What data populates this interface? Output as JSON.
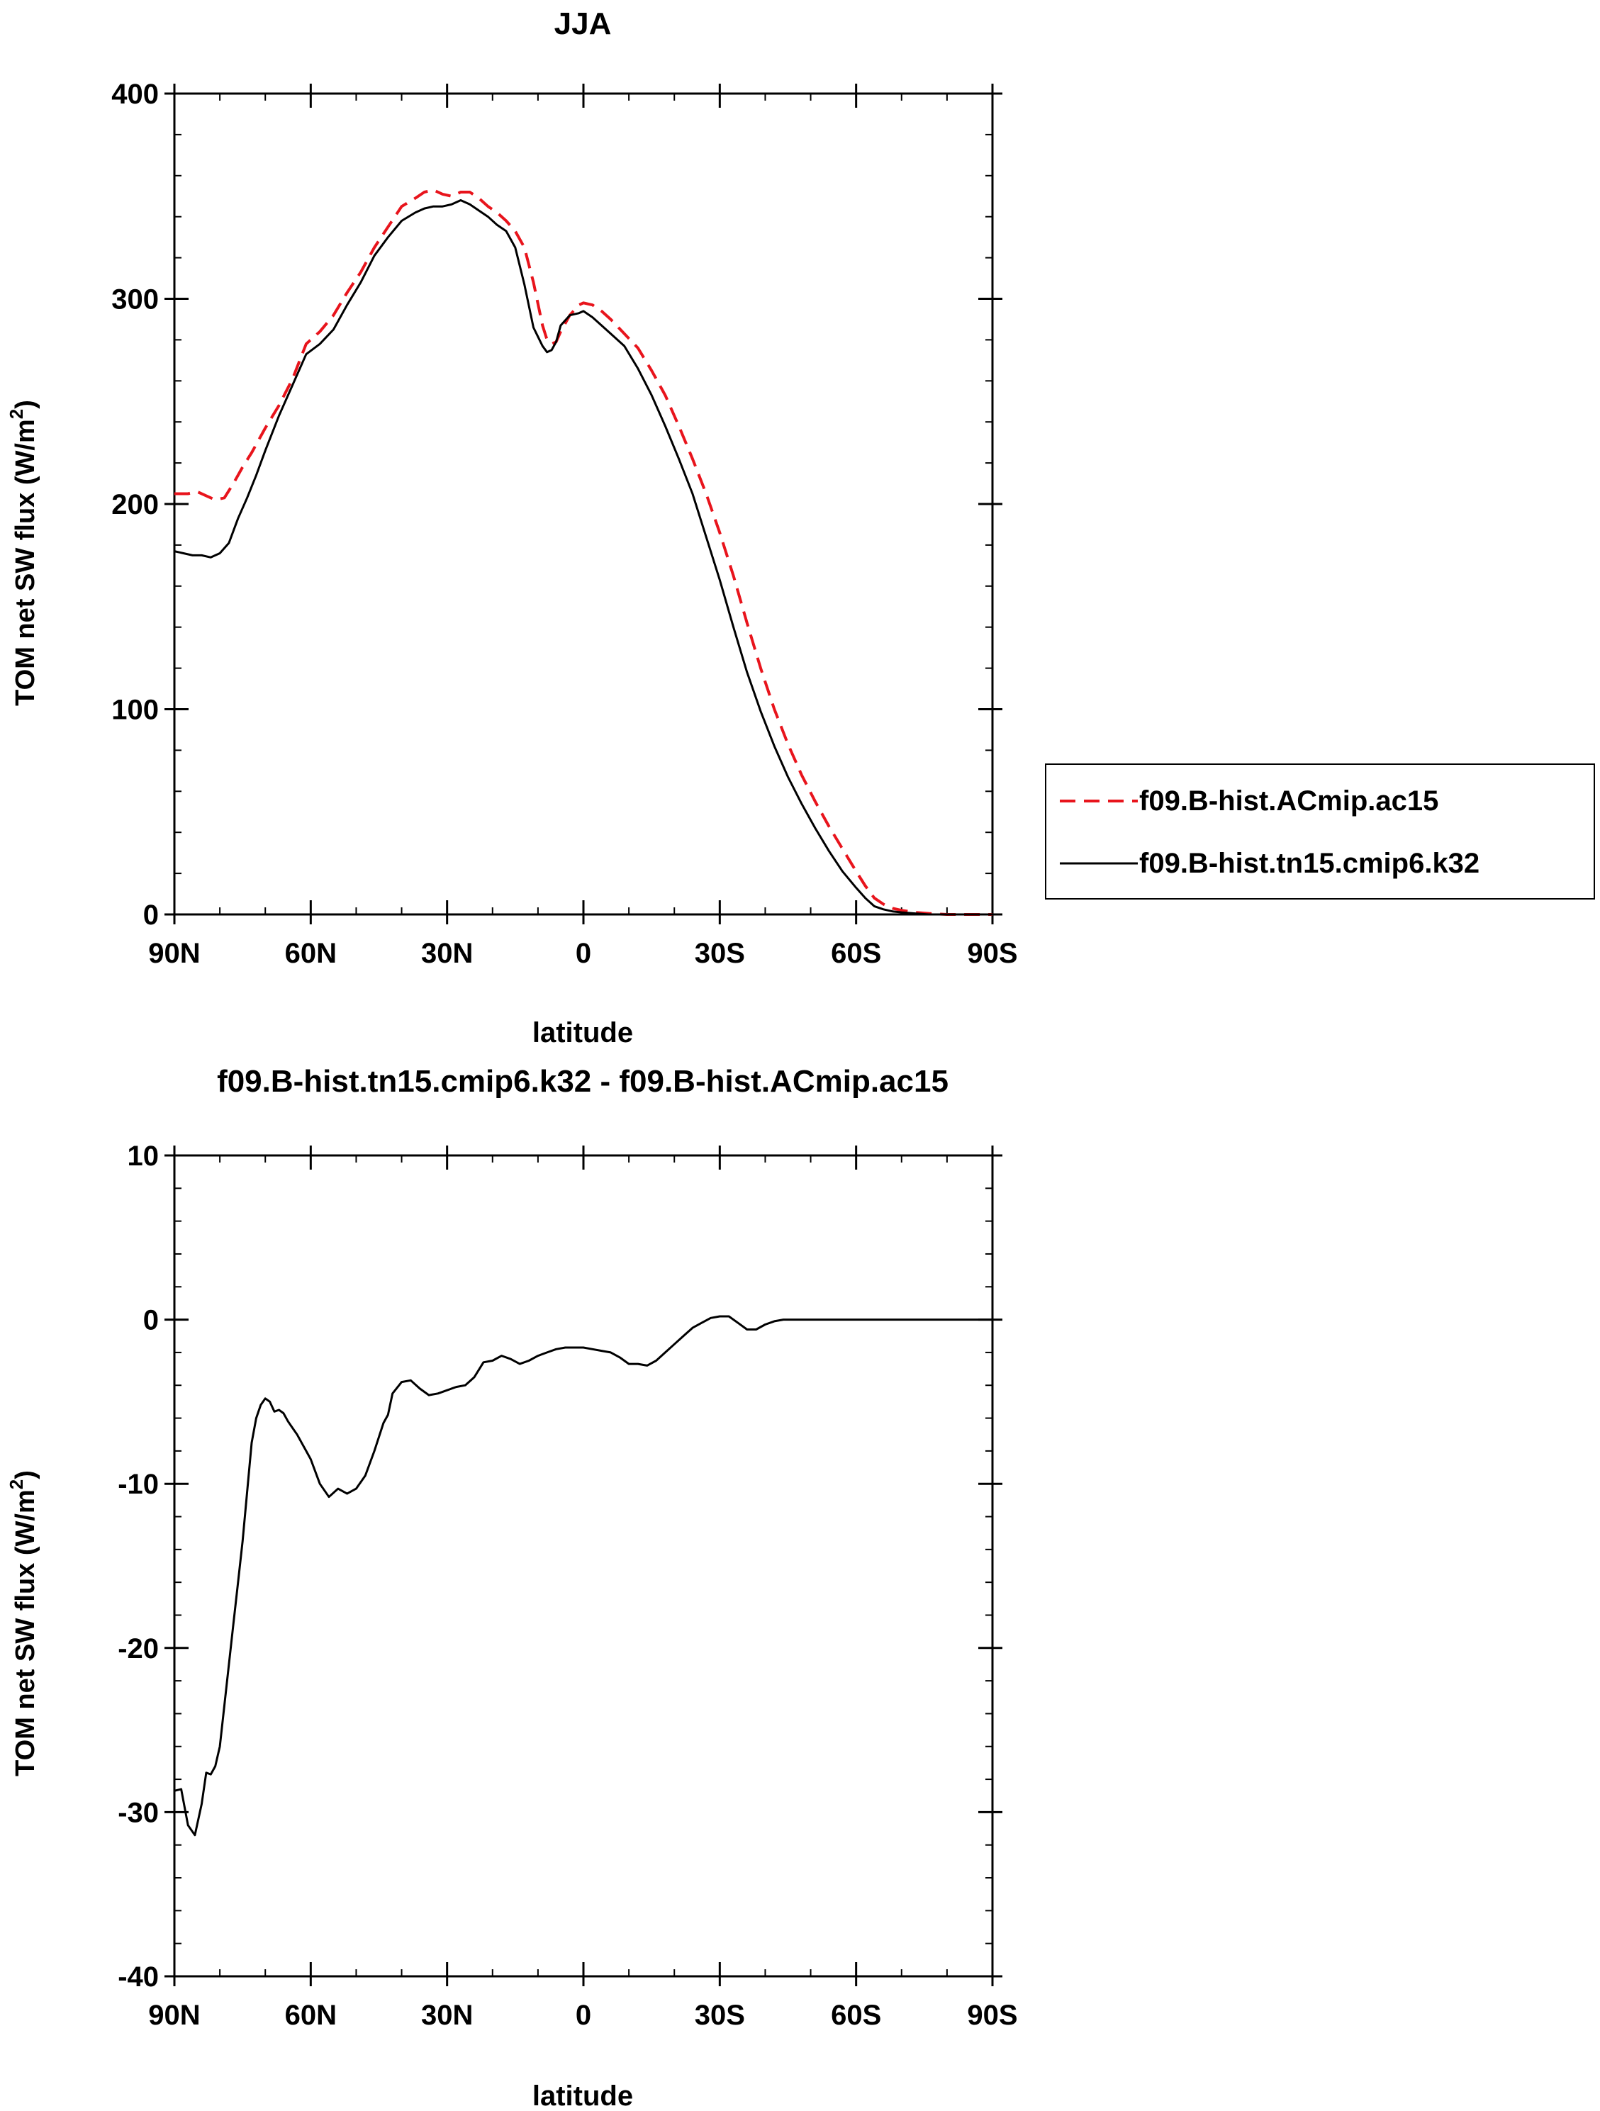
{
  "colors": {
    "series_a": "#e8141c",
    "series_b": "#000000",
    "axis": "#000000"
  },
  "chart_data": [
    {
      "type": "line",
      "title": "JJA",
      "xlabel": "latitude",
      "ylabel": "TOM net SW flux (W/m²)",
      "ylabel_main": "TOM net SW flux (W/m",
      "ylabel_sup": "2",
      "ylabel_end": ")",
      "xlim": [
        90,
        -90
      ],
      "ylim": [
        0,
        400
      ],
      "xticks": [
        90,
        60,
        30,
        0,
        -30,
        -60,
        -90
      ],
      "xtick_labels": [
        "90N",
        "60N",
        "30N",
        "0",
        "30S",
        "60S",
        "90S"
      ],
      "yticks": [
        0,
        100,
        200,
        300,
        400
      ],
      "ytick_labels": [
        "0",
        "100",
        "200",
        "300",
        "400"
      ],
      "legend": [
        "f09.B-hist.ACmip.ac15",
        "f09.B-hist.tn15.cmip6.k32"
      ],
      "legend_position": "right",
      "series": [
        {
          "name": "f09.B-hist.ACmip.ac15",
          "style": "dashed",
          "x": [
            90,
            87,
            85,
            83,
            81,
            79,
            77,
            75,
            73,
            70,
            67,
            64,
            61,
            58,
            55,
            52,
            49,
            46,
            43,
            40,
            37,
            35,
            33,
            31,
            29,
            27,
            25,
            23,
            21,
            19,
            17,
            15,
            13,
            11,
            9,
            8,
            7,
            6,
            5,
            3,
            1,
            0,
            -2,
            -4,
            -6,
            -9,
            -12,
            -15,
            -18,
            -21,
            -24,
            -27,
            -30,
            -33,
            -36,
            -39,
            -42,
            -45,
            -48,
            -51,
            -54,
            -57,
            -60,
            -62,
            -64,
            -66,
            -68,
            -70,
            -73,
            -76,
            -80,
            -85,
            -90
          ],
          "y": [
            205,
            205,
            206,
            204,
            202,
            203,
            210,
            218,
            225,
            237,
            248,
            261,
            278,
            284,
            292,
            303,
            313,
            325,
            335,
            345,
            349,
            352,
            353,
            351,
            350,
            352,
            352,
            349,
            345,
            342,
            338,
            333,
            325,
            308,
            287,
            280,
            278,
            279,
            284,
            292,
            297,
            298,
            297,
            294,
            290,
            283,
            276,
            265,
            253,
            238,
            222,
            205,
            186,
            165,
            142,
            120,
            100,
            83,
            68,
            55,
            43,
            32,
            21,
            14,
            8,
            5,
            3,
            2,
            1,
            0.5,
            0,
            0,
            0
          ]
        },
        {
          "name": "f09.B-hist.tn15.cmip6.k32",
          "style": "solid",
          "x": [
            90,
            88,
            86,
            84,
            82,
            80,
            78,
            76,
            74,
            72,
            70,
            67,
            64,
            61,
            58,
            55,
            52,
            49,
            46,
            43,
            40,
            37,
            35,
            33,
            31,
            29,
            27,
            25,
            23,
            21,
            19,
            17,
            15,
            13,
            11,
            9,
            8,
            7,
            6,
            5,
            3,
            1,
            0,
            -2,
            -4,
            -6,
            -9,
            -12,
            -15,
            -18,
            -21,
            -24,
            -27,
            -30,
            -33,
            -36,
            -39,
            -42,
            -45,
            -48,
            -51,
            -54,
            -57,
            -60,
            -62,
            -64,
            -66,
            -68,
            -70,
            -73,
            -76,
            -80,
            -85,
            -90
          ],
          "y": [
            177,
            176,
            175,
            175,
            174,
            176,
            181,
            193,
            203,
            214,
            226,
            243,
            258,
            273,
            278,
            285,
            297,
            308,
            321,
            330,
            338,
            342,
            344,
            345,
            345,
            346,
            348,
            346,
            343,
            340,
            336,
            333,
            325,
            307,
            286,
            277,
            274,
            275,
            279,
            287,
            292,
            293,
            294,
            291,
            287,
            283,
            277,
            266,
            253,
            238,
            222,
            205,
            184,
            163,
            140,
            118,
            99,
            82,
            67,
            54,
            42,
            31,
            21,
            13,
            8,
            4,
            2.5,
            1.5,
            1,
            0.5,
            0,
            0,
            0,
            0
          ]
        }
      ]
    },
    {
      "type": "line",
      "title": "f09.B-hist.tn15.cmip6.k32 - f09.B-hist.ACmip.ac15",
      "xlabel": "latitude",
      "ylabel": "TOM net SW flux (W/m²)",
      "ylabel_main": "TOM net SW flux (W/m",
      "ylabel_sup": "2",
      "ylabel_end": ")",
      "xlim": [
        90,
        -90
      ],
      "ylim": [
        -40,
        10
      ],
      "xticks": [
        90,
        60,
        30,
        0,
        -30,
        -60,
        -90
      ],
      "xtick_labels": [
        "90N",
        "60N",
        "30N",
        "0",
        "30S",
        "60S",
        "90S"
      ],
      "yticks": [
        -40,
        -30,
        -20,
        -10,
        0,
        10
      ],
      "ytick_labels": [
        "-40",
        "-30",
        "-20",
        "-10",
        "0",
        "10"
      ],
      "series": [
        {
          "name": "f09.B-hist.tn15.cmip6.k32 - f09.B-hist.ACmip.ac15",
          "style": "solid",
          "x": [
            90,
            88.5,
            87,
            85.5,
            84,
            83,
            82,
            81,
            80,
            79,
            78,
            77,
            76,
            75,
            74,
            73,
            72,
            71,
            70,
            69,
            68,
            67,
            66,
            65,
            64,
            63,
            62,
            61,
            60,
            58,
            56,
            54,
            52,
            50,
            48,
            46,
            44,
            43,
            42,
            40,
            38,
            36,
            34,
            32,
            30,
            28,
            26,
            24,
            22,
            20,
            18,
            16,
            14,
            12,
            10,
            8,
            6,
            4,
            2,
            0,
            -2,
            -4,
            -6,
            -8,
            -10,
            -12,
            -14,
            -16,
            -18,
            -20,
            -22,
            -24,
            -26,
            -28,
            -30,
            -32,
            -34,
            -36,
            -38,
            -40,
            -42,
            -44,
            -46,
            -48,
            -50,
            -52,
            -54,
            -56,
            -58,
            -60,
            -62,
            -64,
            -66,
            -68,
            -70,
            -75,
            -80,
            -85,
            -90
          ],
          "y": [
            -28.7,
            -28.6,
            -30.8,
            -31.4,
            -29.5,
            -27.6,
            -27.7,
            -27.2,
            -26.0,
            -23.5,
            -21.0,
            -18.5,
            -16.0,
            -13.5,
            -10.5,
            -7.5,
            -6.0,
            -5.2,
            -4.8,
            -5.0,
            -5.6,
            -5.5,
            -5.7,
            -6.2,
            -6.6,
            -7.0,
            -7.5,
            -8.0,
            -8.5,
            -10.0,
            -10.8,
            -10.3,
            -10.6,
            -10.3,
            -9.5,
            -8.0,
            -6.3,
            -5.8,
            -4.5,
            -3.8,
            -3.7,
            -4.2,
            -4.6,
            -4.5,
            -4.3,
            -4.1,
            -4.0,
            -3.5,
            -2.6,
            -2.5,
            -2.2,
            -2.4,
            -2.7,
            -2.5,
            -2.2,
            -2.0,
            -1.8,
            -1.7,
            -1.7,
            -1.7,
            -1.8,
            -1.9,
            -2.0,
            -2.3,
            -2.7,
            -2.7,
            -2.8,
            -2.5,
            -2.0,
            -1.5,
            -1.0,
            -0.5,
            -0.2,
            0.1,
            0.2,
            0.2,
            -0.2,
            -0.6,
            -0.6,
            -0.3,
            -0.1,
            0,
            0,
            0,
            0,
            0,
            0,
            0,
            0,
            0,
            0,
            0,
            0,
            0,
            0,
            0,
            0,
            0,
            0
          ]
        }
      ]
    }
  ]
}
